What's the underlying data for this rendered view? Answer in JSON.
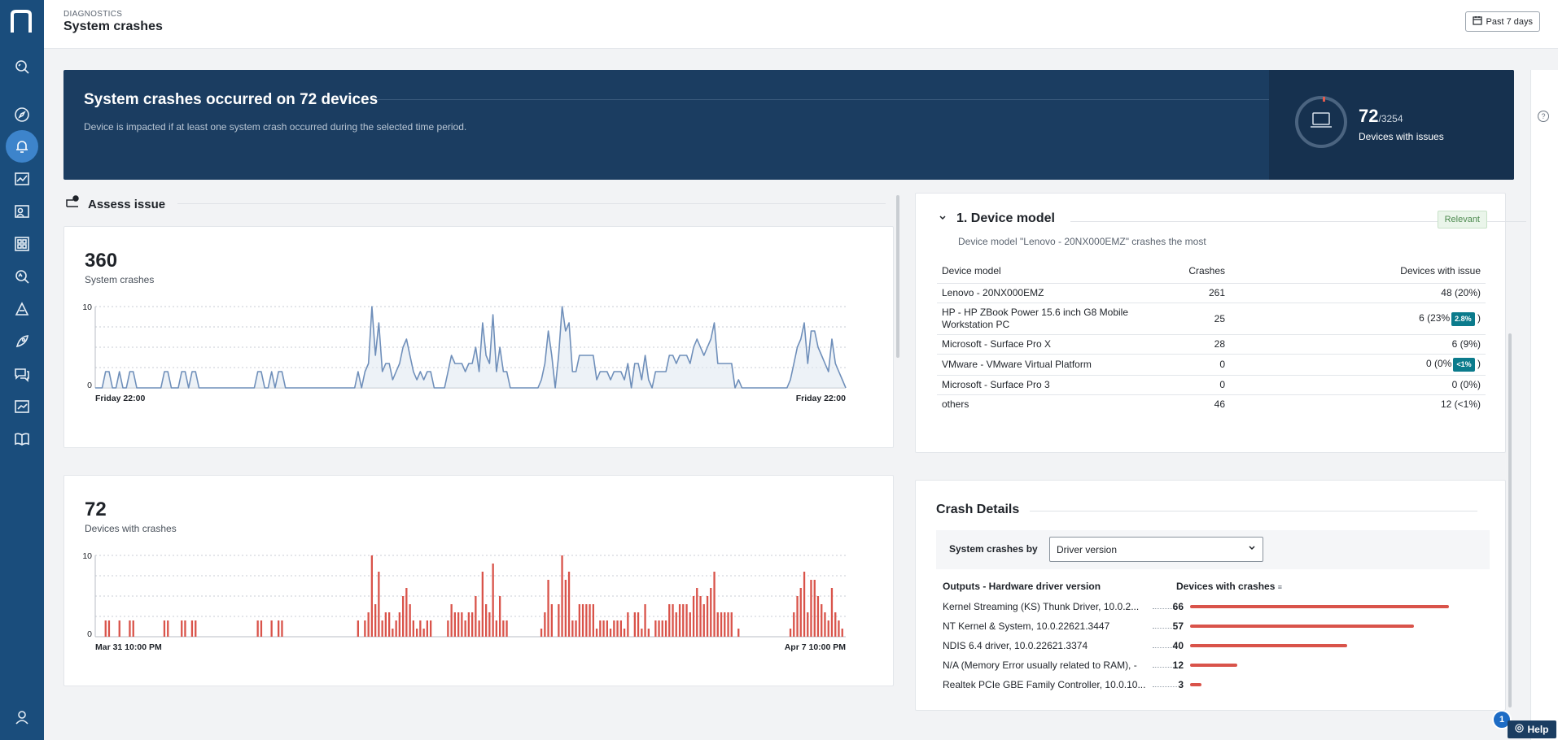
{
  "header": {
    "crumb": "DIAGNOSTICS",
    "title": "System crashes",
    "range_label": "Past 7 days"
  },
  "banner": {
    "title": "System crashes occurred on 72 devices",
    "subtitle": "Device is impacted if at least one system crash occurred during the selected time period.",
    "count": "72",
    "total": "/3254",
    "label": "Devices with issues"
  },
  "assess": {
    "title": "Assess issue"
  },
  "crashes_card": {
    "value": "360",
    "label": "System crashes"
  },
  "devices_card": {
    "value": "72",
    "label": "Devices with crashes"
  },
  "chart_data": [
    {
      "type": "area",
      "ylim": [
        0,
        10
      ],
      "y_ticks": [
        "10",
        "0"
      ],
      "x_labels": [
        "Friday 22:00",
        "Friday 22:00"
      ],
      "values": [
        0,
        0,
        0,
        2,
        2,
        0,
        0,
        2,
        0,
        0,
        2,
        2,
        0,
        0,
        0,
        0,
        0,
        0,
        0,
        0,
        2,
        2,
        0,
        0,
        0,
        2,
        2,
        0,
        2,
        2,
        0,
        0,
        0,
        0,
        0,
        0,
        0,
        0,
        0,
        0,
        0,
        0,
        0,
        0,
        0,
        0,
        0,
        2,
        2,
        0,
        0,
        2,
        0,
        2,
        2,
        0,
        0,
        0,
        0,
        0,
        0,
        0,
        0,
        0,
        0,
        0,
        0,
        0,
        0,
        0,
        0,
        0,
        0,
        0,
        0,
        0,
        2,
        0,
        2,
        3,
        10,
        4,
        8,
        2,
        3,
        3,
        1,
        2,
        3,
        5,
        6,
        4,
        2,
        1,
        2,
        1,
        2,
        2,
        0,
        0,
        0,
        0,
        2,
        4,
        3,
        3,
        3,
        2,
        3,
        3,
        5,
        2,
        8,
        4,
        3,
        9,
        2,
        5,
        2,
        2,
        0,
        0,
        0,
        0,
        0,
        0,
        0,
        0,
        0,
        1,
        3,
        7,
        4,
        0,
        4,
        10,
        7,
        8,
        2,
        2,
        4,
        4,
        4,
        4,
        4,
        1,
        2,
        2,
        2,
        1,
        2,
        2,
        2,
        1,
        3,
        0,
        3,
        3,
        1,
        4,
        1,
        0,
        2,
        2,
        2,
        2,
        4,
        4,
        3,
        4,
        4,
        4,
        3,
        5,
        6,
        5,
        4,
        5,
        6,
        8,
        3,
        3,
        3,
        3,
        3,
        0,
        1,
        0,
        0,
        0,
        0,
        0,
        0,
        0,
        0,
        0,
        0,
        0,
        0,
        0,
        0,
        1,
        3,
        5,
        6,
        8,
        3,
        7,
        7,
        5,
        4,
        3,
        2,
        6,
        3,
        2,
        1,
        0
      ]
    },
    {
      "type": "bar",
      "ylim": [
        0,
        10
      ],
      "y_ticks": [
        "10",
        "0"
      ],
      "x_labels": [
        "Mar 31 10:00 PM",
        "Apr 7 10:00 PM"
      ],
      "values": [
        0,
        0,
        0,
        2,
        2,
        0,
        0,
        2,
        0,
        0,
        2,
        2,
        0,
        0,
        0,
        0,
        0,
        0,
        0,
        0,
        2,
        2,
        0,
        0,
        0,
        2,
        2,
        0,
        2,
        2,
        0,
        0,
        0,
        0,
        0,
        0,
        0,
        0,
        0,
        0,
        0,
        0,
        0,
        0,
        0,
        0,
        0,
        2,
        2,
        0,
        0,
        2,
        0,
        2,
        2,
        0,
        0,
        0,
        0,
        0,
        0,
        0,
        0,
        0,
        0,
        0,
        0,
        0,
        0,
        0,
        0,
        0,
        0,
        0,
        0,
        0,
        2,
        0,
        2,
        3,
        10,
        4,
        8,
        2,
        3,
        3,
        1,
        2,
        3,
        5,
        6,
        4,
        2,
        1,
        2,
        1,
        2,
        2,
        0,
        0,
        0,
        0,
        2,
        4,
        3,
        3,
        3,
        2,
        3,
        3,
        5,
        2,
        8,
        4,
        3,
        9,
        2,
        5,
        2,
        2,
        0,
        0,
        0,
        0,
        0,
        0,
        0,
        0,
        0,
        1,
        3,
        7,
        4,
        0,
        4,
        10,
        7,
        8,
        2,
        2,
        4,
        4,
        4,
        4,
        4,
        1,
        2,
        2,
        2,
        1,
        2,
        2,
        2,
        1,
        3,
        0,
        3,
        3,
        1,
        4,
        1,
        0,
        2,
        2,
        2,
        2,
        4,
        4,
        3,
        4,
        4,
        4,
        3,
        5,
        6,
        5,
        4,
        5,
        6,
        8,
        3,
        3,
        3,
        3,
        3,
        0,
        1,
        0,
        0,
        0,
        0,
        0,
        0,
        0,
        0,
        0,
        0,
        0,
        0,
        0,
        0,
        1,
        3,
        5,
        6,
        8,
        3,
        7,
        7,
        5,
        4,
        3,
        2,
        6,
        3,
        2,
        1,
        0
      ]
    }
  ],
  "device_model": {
    "title": "1. Device model",
    "badge": "Relevant",
    "subtitle": "Device model \"Lenovo - 20NX000EMZ\" crashes the most",
    "columns": [
      "Device model",
      "Crashes",
      "Devices with issue"
    ],
    "rows": [
      {
        "model": "Lenovo - 20NX000EMZ",
        "crashes": "261",
        "devices": "48 (20%)",
        "pill": ""
      },
      {
        "model": "HP - HP ZBook Power 15.6 inch G8 Mobile Workstation PC",
        "crashes": "25",
        "devices": "6 (23%",
        "pill": "2.8%"
      },
      {
        "model": "Microsoft - Surface Pro X",
        "crashes": "28",
        "devices": "6 (9%)",
        "pill": ""
      },
      {
        "model": "VMware - VMware Virtual Platform",
        "crashes": "0",
        "devices": "0 (0%",
        "pill": "<1%"
      },
      {
        "model": "Microsoft - Surface Pro 3",
        "crashes": "0",
        "devices": "0 (0%)",
        "pill": ""
      },
      {
        "model": "others",
        "crashes": "46",
        "devices": "12 (<1%)",
        "pill": ""
      }
    ]
  },
  "crash_details": {
    "title": "Crash Details",
    "filter_label": "System crashes by",
    "filter_value": "Driver version",
    "col_output": "Outputs - Hardware driver version",
    "col_devices": "Devices with crashes",
    "rows": [
      {
        "name": "Kernel Streaming (KS) Thunk Driver, 10.0.2...",
        "value": "66",
        "fraction": 1.0
      },
      {
        "name": "NT Kernel & System, 10.0.22621.3447",
        "value": "57",
        "fraction": 0.864
      },
      {
        "name": "NDIS 6.4 driver, 10.0.22621.3374",
        "value": "40",
        "fraction": 0.606
      },
      {
        "name": "N/A (Memory Error usually related to RAM), -",
        "value": "12",
        "fraction": 0.182
      },
      {
        "name": "Realtek PCIe GBE Family Controller, 10.0.10...",
        "value": "3",
        "fraction": 0.045
      }
    ]
  },
  "help": {
    "label": "Help",
    "badge": "1"
  },
  "colors": {
    "sidebar": "#1a4d7c",
    "banner": "#1b3d61",
    "line": "#6f8fba",
    "bar": "#d9534a"
  }
}
